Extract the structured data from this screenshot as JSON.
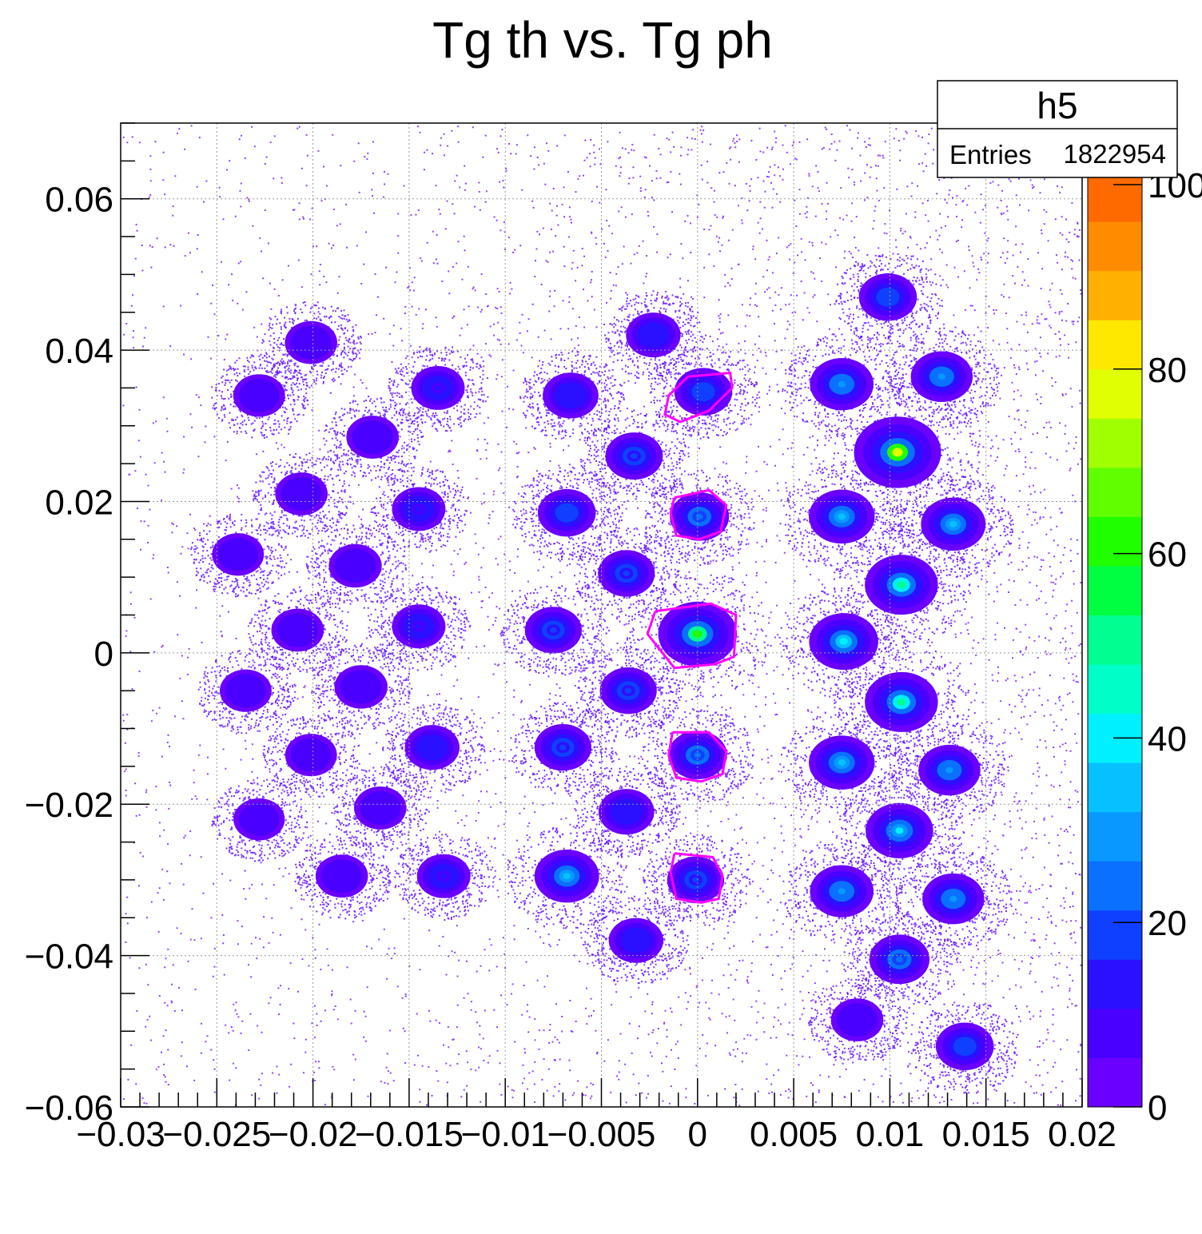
{
  "chart_data": {
    "type": "heatmap",
    "title": "Tg th vs. Tg ph",
    "xlabel": "",
    "ylabel": "",
    "xlim": [
      -0.03,
      0.02
    ],
    "ylim": [
      -0.06,
      0.07
    ],
    "x_ticks": [
      -0.03,
      -0.025,
      -0.02,
      -0.015,
      -0.01,
      -0.005,
      0,
      0.005,
      0.01,
      0.015,
      0.02
    ],
    "x_tick_labels": [
      "−0.03",
      "−0.025",
      "−0.02",
      "−0.015",
      "−0.01",
      "−0.005",
      "0",
      "0.005",
      "0.01",
      "0.015",
      "0.02"
    ],
    "y_ticks": [
      -0.06,
      -0.04,
      -0.02,
      0,
      0.02,
      0.04,
      0.06
    ],
    "y_tick_labels": [
      "−0.06",
      "−0.04",
      "−0.02",
      "0",
      "0.02",
      "0.04",
      "0.06"
    ],
    "grid": true,
    "stats_box": {
      "name": "h5",
      "entries_label": "Entries",
      "entries_value": "1822954",
      "placement": "top-right"
    },
    "color_scale": {
      "min": 0,
      "max": 100,
      "ticks": [
        0,
        20,
        40,
        60,
        80,
        100
      ],
      "tick_labels": [
        "0",
        "20",
        "40",
        "60",
        "80",
        "100"
      ],
      "colors": [
        "#6a00ff",
        "#4a00ff",
        "#2a10ff",
        "#1040ff",
        "#0a70ff",
        "#0898ff",
        "#06c0ff",
        "#00f0ff",
        "#00ffc8",
        "#00ff90",
        "#00ff40",
        "#20ff00",
        "#60ff00",
        "#a0ff00",
        "#e0ff00",
        "#ffe800",
        "#ffb000",
        "#ff8c00",
        "#ff6a00",
        "#ff3c00"
      ]
    },
    "series": [
      {
        "values": [
          {
            "x": 0.0099,
            "y": 0.047,
            "z": 18
          },
          {
            "x": -0.0023,
            "y": 0.042,
            "z": 12
          },
          {
            "x": -0.0201,
            "y": 0.041,
            "z": 8
          },
          {
            "x": 0.0075,
            "y": 0.0355,
            "z": 28
          },
          {
            "x": 0.0127,
            "y": 0.0365,
            "z": 25
          },
          {
            "x": 0.0003,
            "y": 0.0345,
            "z": 18
          },
          {
            "x": -0.0135,
            "y": 0.035,
            "z": 10
          },
          {
            "x": -0.0066,
            "y": 0.034,
            "z": 14
          },
          {
            "x": -0.0228,
            "y": 0.034,
            "z": 7
          },
          {
            "x": 0.0104,
            "y": 0.0265,
            "z": 70
          },
          {
            "x": -0.0169,
            "y": 0.0285,
            "z": 8
          },
          {
            "x": -0.0033,
            "y": 0.026,
            "z": 17
          },
          {
            "x": -0.0206,
            "y": 0.021,
            "z": 8
          },
          {
            "x": -0.0145,
            "y": 0.019,
            "z": 10
          },
          {
            "x": -0.0068,
            "y": 0.0185,
            "z": 18
          },
          {
            "x": 0.0075,
            "y": 0.018,
            "z": 32
          },
          {
            "x": 0.0133,
            "y": 0.017,
            "z": 30
          },
          {
            "x": 0.0001,
            "y": 0.018,
            "z": 20
          },
          {
            "x": -0.0239,
            "y": 0.013,
            "z": 7
          },
          {
            "x": -0.0178,
            "y": 0.0115,
            "z": 9
          },
          {
            "x": -0.0037,
            "y": 0.0105,
            "z": 16
          },
          {
            "x": 0.0106,
            "y": 0.009,
            "z": 45
          },
          {
            "x": -0.0208,
            "y": 0.003,
            "z": 8
          },
          {
            "x": -0.0145,
            "y": 0.0035,
            "z": 10
          },
          {
            "x": -0.0075,
            "y": 0.003,
            "z": 16
          },
          {
            "x": 0.0,
            "y": 0.0025,
            "z": 55
          },
          {
            "x": 0.0076,
            "y": 0.0015,
            "z": 38
          },
          {
            "x": -0.0235,
            "y": -0.005,
            "z": 7
          },
          {
            "x": -0.0175,
            "y": -0.0045,
            "z": 9
          },
          {
            "x": -0.0036,
            "y": -0.005,
            "z": 16
          },
          {
            "x": 0.0106,
            "y": -0.0065,
            "z": 45
          },
          {
            "x": -0.0201,
            "y": -0.0135,
            "z": 7
          },
          {
            "x": -0.0138,
            "y": -0.0125,
            "z": 12
          },
          {
            "x": -0.007,
            "y": -0.0125,
            "z": 16
          },
          {
            "x": 0.0,
            "y": -0.0135,
            "z": 20
          },
          {
            "x": 0.0075,
            "y": -0.0145,
            "z": 32
          },
          {
            "x": 0.0131,
            "y": -0.0155,
            "z": 25
          },
          {
            "x": -0.0228,
            "y": -0.022,
            "z": 6
          },
          {
            "x": -0.0165,
            "y": -0.0205,
            "z": 8
          },
          {
            "x": -0.0037,
            "y": -0.021,
            "z": 14
          },
          {
            "x": 0.0105,
            "y": -0.0235,
            "z": 35
          },
          {
            "x": -0.0185,
            "y": -0.0295,
            "z": 8
          },
          {
            "x": -0.0132,
            "y": -0.0295,
            "z": 10
          },
          {
            "x": -0.0068,
            "y": -0.0295,
            "z": 30
          },
          {
            "x": -0.0001,
            "y": -0.03,
            "z": 16
          },
          {
            "x": 0.0075,
            "y": -0.0315,
            "z": 28
          },
          {
            "x": 0.0133,
            "y": -0.0325,
            "z": 25
          },
          {
            "x": -0.0032,
            "y": -0.038,
            "z": 12
          },
          {
            "x": 0.0105,
            "y": -0.0405,
            "z": 22
          },
          {
            "x": 0.0083,
            "y": -0.0485,
            "z": 8
          },
          {
            "x": 0.0139,
            "y": -0.052,
            "z": 18
          }
        ]
      }
    ],
    "contours": [
      {
        "x": [
          -0.0005,
          0.0017,
          0.0018,
          0.0006,
          -0.0009,
          -0.0017,
          -0.0015,
          -0.0005
        ],
        "y": [
          0.0365,
          0.037,
          0.035,
          0.032,
          0.0305,
          0.0315,
          0.034,
          0.0365
        ]
      },
      {
        "x": [
          -0.0012,
          0.0006,
          0.0015,
          0.0012,
          0.0001,
          -0.0011,
          -0.0014,
          -0.0012
        ],
        "y": [
          0.0205,
          0.0215,
          0.0195,
          0.016,
          0.015,
          0.0155,
          0.0185,
          0.0205
        ]
      },
      {
        "x": [
          -0.0022,
          0.0007,
          0.002,
          0.0019,
          0.0009,
          -0.0012,
          -0.0026,
          -0.0022
        ],
        "y": [
          0.0055,
          0.0065,
          0.005,
          -0.0005,
          -0.0015,
          -0.002,
          0.0025,
          0.0055
        ]
      },
      {
        "x": [
          -0.0013,
          0.0006,
          0.0015,
          0.0013,
          0.0002,
          -0.0011,
          -0.0015,
          -0.0013
        ],
        "y": [
          -0.0105,
          -0.0105,
          -0.013,
          -0.016,
          -0.017,
          -0.0165,
          -0.0135,
          -0.0105
        ]
      },
      {
        "x": [
          -0.0012,
          0.0008,
          0.0013,
          0.0011,
          0.0002,
          -0.0011,
          -0.0014,
          -0.0012
        ],
        "y": [
          -0.0265,
          -0.027,
          -0.0295,
          -0.0325,
          -0.033,
          -0.0325,
          -0.029,
          -0.0265
        ]
      }
    ],
    "contour_color": "#ff00ff",
    "background_point_color": "#6a00ff"
  }
}
